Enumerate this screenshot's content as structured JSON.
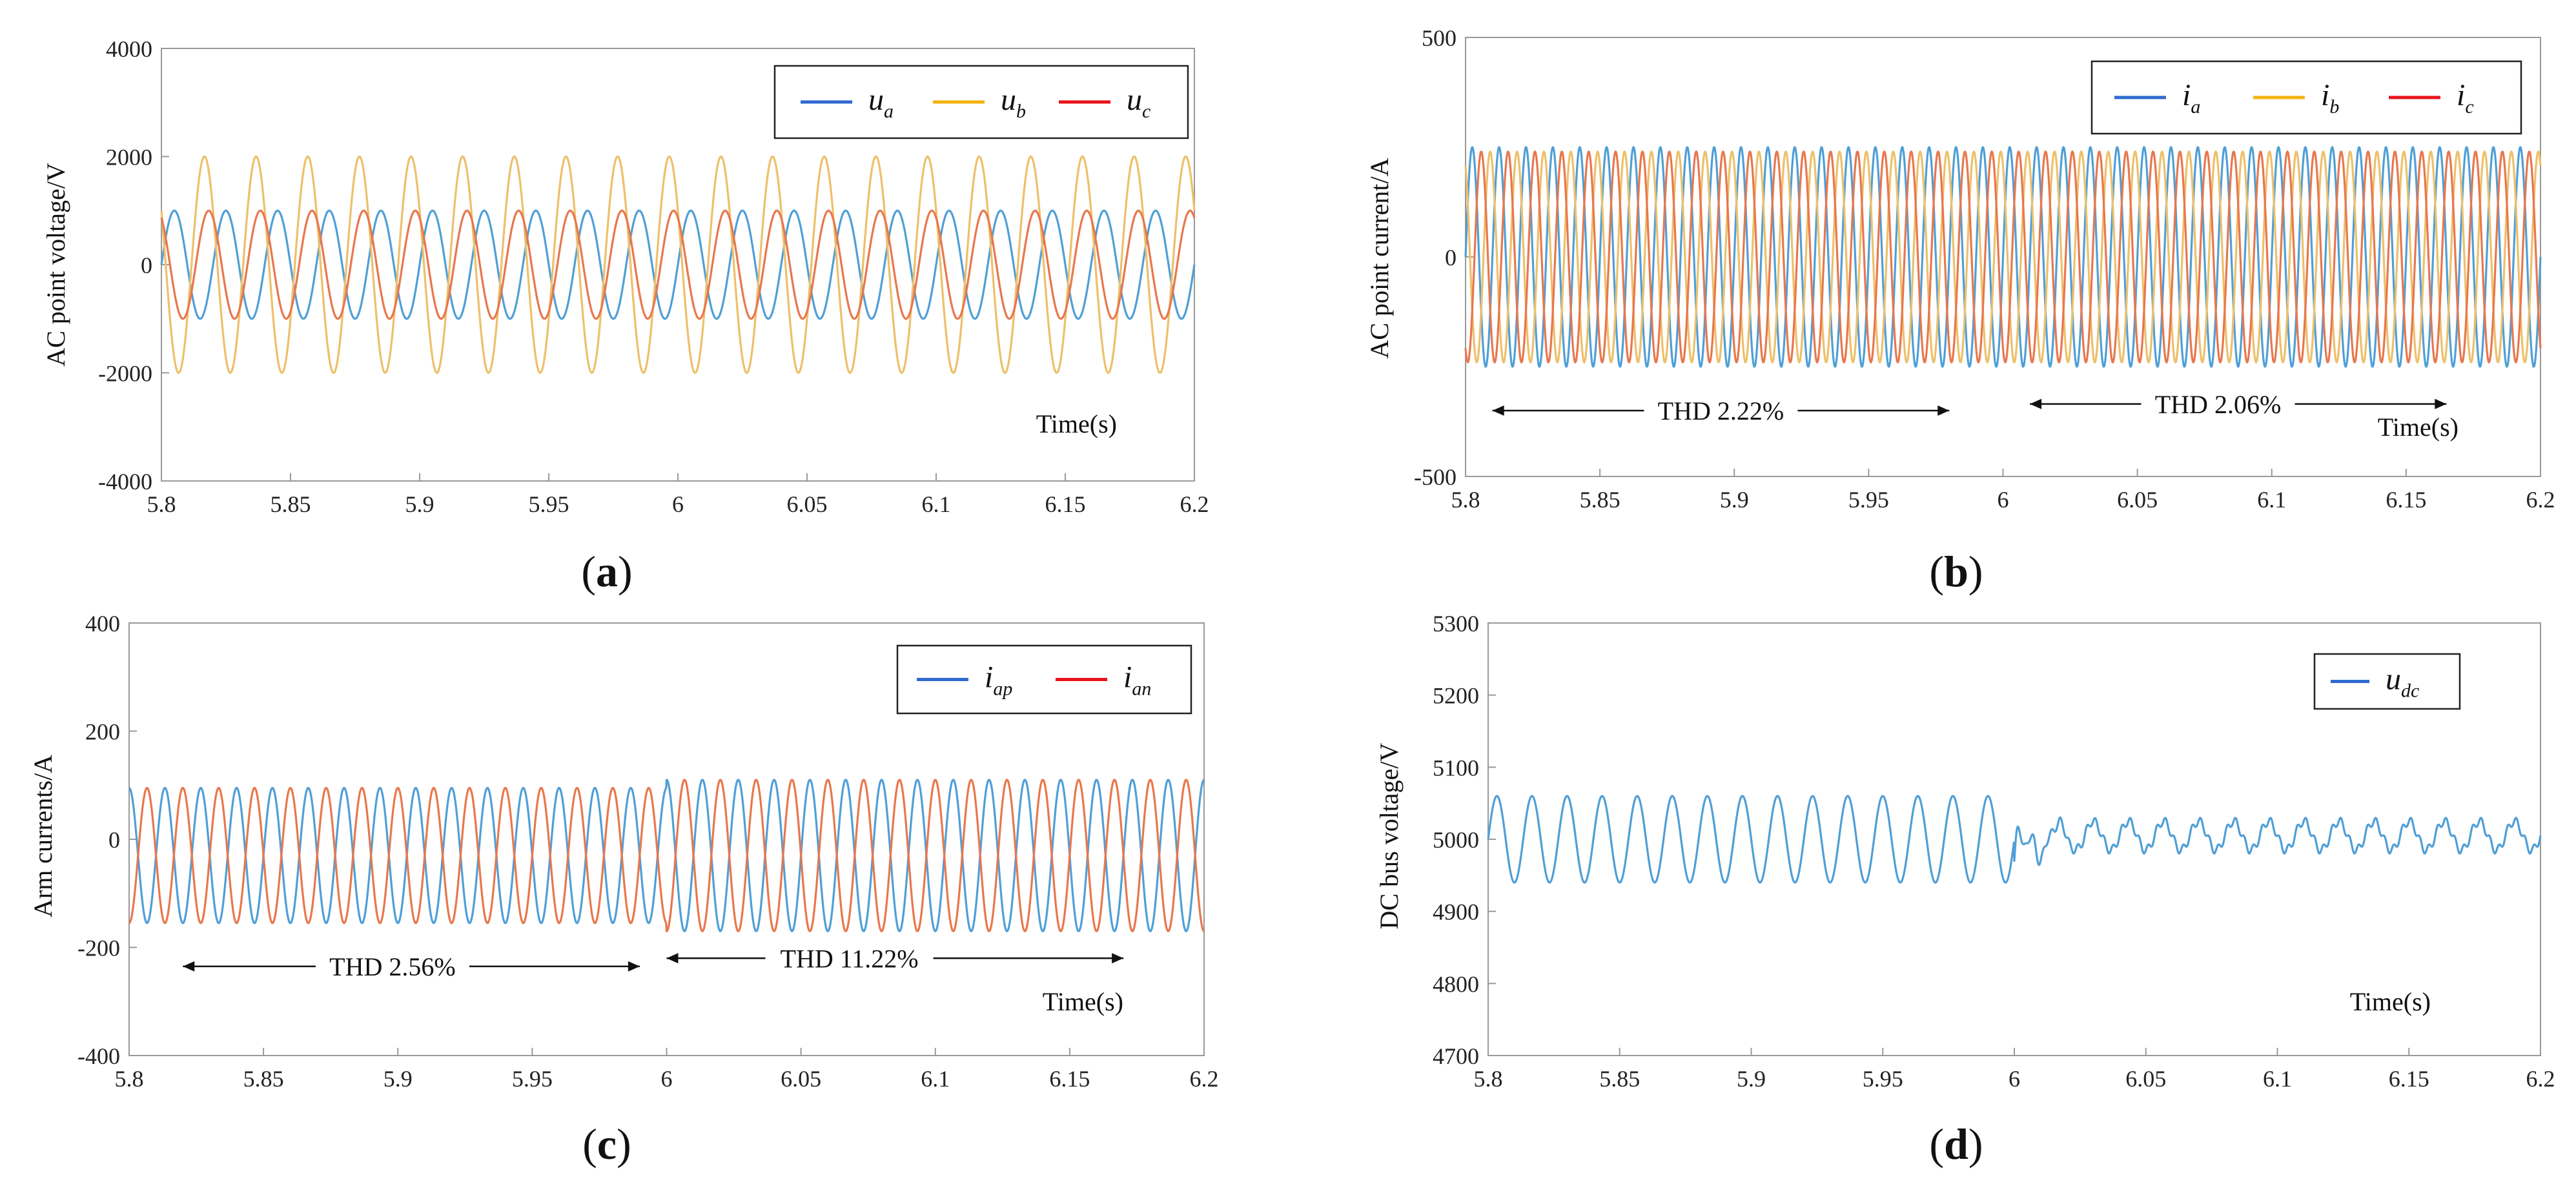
{
  "colors": {
    "blue": "#4f9fd6",
    "yellow": "#edc06a",
    "red": "#e8774d",
    "frame": "#999999",
    "grid": "#dddddd",
    "legend_blue": "#2f6ad0",
    "legend_yellow": "#f3b20f",
    "legend_red": "#e8141a"
  },
  "chart_data": [
    {
      "id": "a",
      "type": "line",
      "sub_label": "a",
      "ylabel": "AC point voltage/V",
      "xlabel": "Time(s)",
      "xlim": [
        5.8,
        6.2
      ],
      "ylim": [
        -4000,
        4000
      ],
      "xticks": [
        "5.8",
        "5.85",
        "5.9",
        "5.95",
        "6",
        "6.05",
        "6.1",
        "6.15",
        "6.2"
      ],
      "yticks": [
        "-4000",
        "-2000",
        "0",
        "2000",
        "4000"
      ],
      "series": [
        {
          "name": "u",
          "sub": "a",
          "color": "#4f9fd6",
          "legend_color": "#2f6ad0",
          "amplitude": 1000,
          "frequency_hz": 50,
          "phase_deg": 0
        },
        {
          "name": "u",
          "sub": "b",
          "color": "#edc06a",
          "legend_color": "#f3b20f",
          "amplitude": 2000,
          "frequency_hz": 50,
          "phase_deg": 150
        },
        {
          "name": "u",
          "sub": "c",
          "color": "#e8774d",
          "legend_color": "#e8141a",
          "amplitude": 1000,
          "frequency_hz": 50,
          "phase_deg": 120
        }
      ],
      "annotations": []
    },
    {
      "id": "b",
      "type": "line",
      "sub_label": "b",
      "ylabel": "AC point current/A",
      "xlabel": "Time(s)",
      "xlim": [
        5.8,
        6.2
      ],
      "ylim": [
        -500,
        500
      ],
      "xticks": [
        "5.8",
        "5.85",
        "5.9",
        "5.95",
        "6",
        "6.05",
        "6.1",
        "6.15",
        "6.2"
      ],
      "yticks": [
        "-500",
        "0",
        "500"
      ],
      "series": [
        {
          "name": "i",
          "sub": "a",
          "color": "#4f9fd6",
          "legend_color": "#2f6ad0",
          "amplitude": 250,
          "frequency_hz": 100,
          "phase_deg": 0
        },
        {
          "name": "i",
          "sub": "b",
          "color": "#edc06a",
          "legend_color": "#f3b20f",
          "amplitude": 240,
          "frequency_hz": 100,
          "phase_deg": 120
        },
        {
          "name": "i",
          "sub": "c",
          "color": "#e8774d",
          "legend_color": "#e8141a",
          "amplitude": 240,
          "frequency_hz": 100,
          "phase_deg": 240
        }
      ],
      "annotations": [
        {
          "text": "THD 2.22%",
          "x_from": 5.81,
          "x_to": 5.98,
          "y": -350,
          "text_x": 5.895,
          "arrows": "both"
        },
        {
          "text": "THD 2.06%",
          "x_from": 6.01,
          "x_to": 6.165,
          "y": -335,
          "text_x": 6.08,
          "arrows": "both"
        }
      ]
    },
    {
      "id": "c",
      "type": "line",
      "sub_label": "c",
      "ylabel": "Arm currents/A",
      "xlabel": "Time(s)",
      "xlim": [
        5.8,
        6.2
      ],
      "ylim": [
        -400,
        400
      ],
      "xticks": [
        "5.8",
        "5.85",
        "5.9",
        "5.95",
        "6",
        "6.05",
        "6.1",
        "6.15",
        "6.2"
      ],
      "yticks": [
        "-400",
        "-200",
        "0",
        "200",
        "400"
      ],
      "series": [
        {
          "name": "i",
          "sub": "ap",
          "color": "#4f9fd6",
          "legend_color": "#2f6ad0",
          "offset": -30,
          "amplitude_before": 125,
          "amplitude_after": 140,
          "frequency_hz": 75,
          "phase_deg": 90
        },
        {
          "name": "i",
          "sub": "an",
          "color": "#e8774d",
          "legend_color": "#e8141a",
          "offset": -30,
          "amplitude_before": 125,
          "amplitude_after": 140,
          "frequency_hz": 75,
          "phase_deg": 270
        }
      ],
      "annotations": [
        {
          "text": "THD 2.56%",
          "x_from": 5.82,
          "x_to": 5.99,
          "y": -235,
          "text_x": 5.898,
          "arrows": "both"
        },
        {
          "text": "THD 11.22%",
          "x_from": 6.0,
          "x_to": 6.17,
          "y": -220,
          "text_x": 6.068,
          "arrows": "both"
        }
      ]
    },
    {
      "id": "d",
      "type": "line",
      "sub_label": "d",
      "ylabel": "DC bus voltage/V",
      "xlabel": "Time(s)",
      "xlim": [
        5.8,
        6.2
      ],
      "ylim": [
        4700,
        5300
      ],
      "xticks": [
        "5.8",
        "5.85",
        "5.9",
        "5.95",
        "6",
        "6.05",
        "6.1",
        "6.15",
        "6.2"
      ],
      "yticks": [
        "4700",
        "4800",
        "4900",
        "5000",
        "5100",
        "5200",
        "5300"
      ],
      "series": [
        {
          "name": "u",
          "sub": "dc",
          "color": "#4f9fd6",
          "legend_color": "#2f6ad0",
          "mean_before": 5000,
          "amplitude_before": 60,
          "mean_after": 5005,
          "amplitude_after": 20,
          "frequency_hz": 75
        }
      ],
      "annotations": []
    }
  ]
}
